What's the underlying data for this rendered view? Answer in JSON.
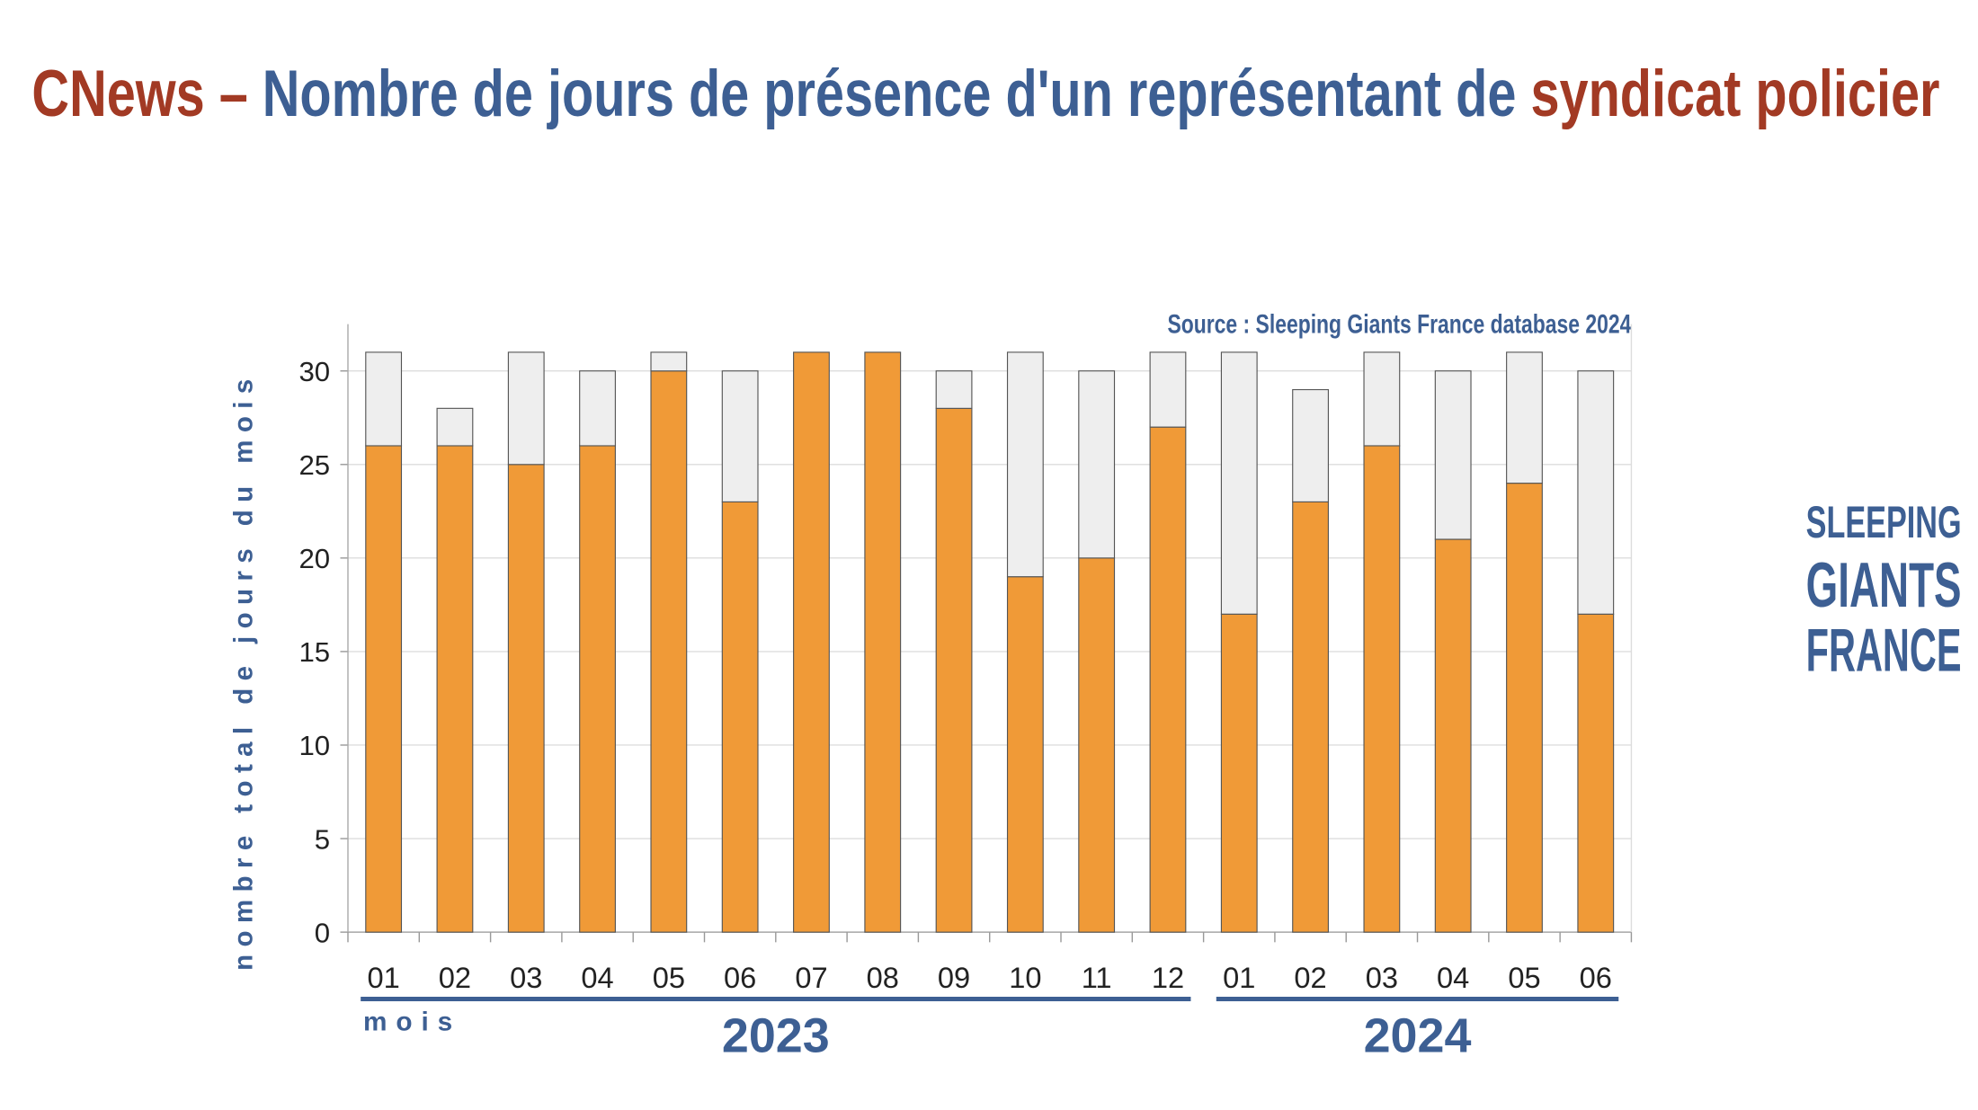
{
  "chart_data": {
    "type": "stacked_bar",
    "title": [
      "CNews – ",
      "Nombre de jours de présence d'un représentant de ",
      "syndicat policier"
    ],
    "source": "Source : Sleeping Giants France database 2024",
    "logo": [
      "SLEEPING",
      "GIANTS",
      "FRANCE"
    ],
    "ylabel": "nombre total de jours du mois",
    "xlabel": "mois",
    "years": [
      "2023",
      "2024"
    ],
    "categories": [
      "01",
      "02",
      "03",
      "04",
      "05",
      "06",
      "07",
      "08",
      "09",
      "10",
      "11",
      "12",
      "01",
      "02",
      "03",
      "04",
      "05",
      "06"
    ],
    "series": [
      {
        "color": "#f09a37",
        "values": [
          26,
          26,
          25,
          26,
          30,
          23,
          31,
          31,
          28,
          19,
          20,
          27,
          17,
          23,
          26,
          21,
          24,
          17
        ]
      },
      {
        "color": "#eeeeee",
        "values": [
          5,
          2,
          6,
          4,
          1,
          7,
          0,
          0,
          2,
          12,
          10,
          4,
          14,
          6,
          5,
          9,
          7,
          13
        ]
      }
    ],
    "ylim": [
      0,
      32.5
    ],
    "yticks": [
      0,
      5,
      10,
      15,
      20,
      25,
      30
    ],
    "grid": true
  }
}
